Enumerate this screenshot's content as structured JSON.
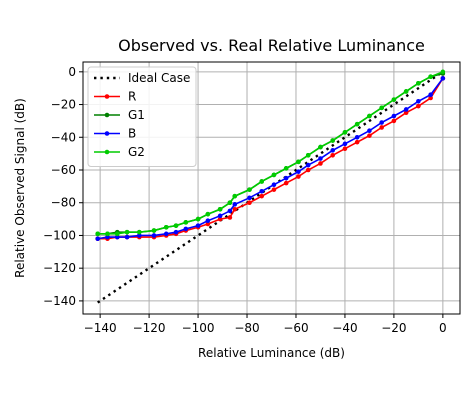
{
  "chart_data": {
    "type": "line",
    "title": "Observed vs. Real Relative Luminance",
    "xlabel": "Relative Luminance (dB)",
    "ylabel": "Relative Observed Signal (dB)",
    "xlim": [
      -147,
      7
    ],
    "ylim": [
      -148,
      6
    ],
    "xticks": [
      -140,
      -120,
      -100,
      -80,
      -60,
      -40,
      -20,
      0
    ],
    "yticks": [
      0,
      -20,
      -40,
      -60,
      -80,
      -100,
      -120,
      -140
    ],
    "grid": true,
    "legend": "top-left",
    "series": [
      {
        "name": "Ideal Case",
        "color": "#000000",
        "style": "dotted",
        "x": [
          -141,
          0
        ],
        "y": [
          -141,
          0
        ]
      },
      {
        "name": "R",
        "color": "#ff0000",
        "style": "solid-dot",
        "x": [
          -141,
          -137,
          -133,
          -129,
          -124,
          -118,
          -113,
          -109,
          -105,
          -100,
          -96,
          -91,
          -87,
          -85,
          -79,
          -74,
          -69,
          -64,
          -59,
          -55,
          -50,
          -45,
          -40,
          -35,
          -30,
          -25,
          -20,
          -15,
          -10,
          -5,
          0
        ],
        "y": [
          -102,
          -102,
          -101,
          -101,
          -101,
          -101,
          -100,
          -99,
          -97,
          -95,
          -93,
          -90,
          -89,
          -84,
          -80,
          -76,
          -72,
          -68,
          -64,
          -60,
          -56,
          -51,
          -47,
          -43,
          -39,
          -34,
          -30,
          -25,
          -21,
          -16,
          -4
        ]
      },
      {
        "name": "G1",
        "color": "#008000",
        "style": "solid-dot",
        "x": [
          -141,
          -137,
          -133,
          -129,
          -124,
          -118,
          -113,
          -109,
          -105,
          -100,
          -96,
          -91,
          -87,
          -85,
          -79,
          -74,
          -69,
          -64,
          -59,
          -55,
          -50,
          -45,
          -40,
          -35,
          -30,
          -25,
          -20,
          -15,
          -10,
          -5,
          0
        ],
        "y": [
          -99,
          -99,
          -98,
          -98,
          -98,
          -97,
          -95,
          -94,
          -92,
          -90,
          -87,
          -84,
          -80,
          -76,
          -72,
          -67,
          -63,
          -59,
          -55,
          -51,
          -46,
          -42,
          -37,
          -32,
          -27,
          -22,
          -17,
          -12,
          -7,
          -3,
          -1
        ]
      },
      {
        "name": "B",
        "color": "#0000ff",
        "style": "solid-dot",
        "x": [
          -141,
          -137,
          -133,
          -129,
          -124,
          -118,
          -113,
          -109,
          -105,
          -100,
          -96,
          -91,
          -87,
          -85,
          -79,
          -74,
          -69,
          -64,
          -59,
          -55,
          -50,
          -45,
          -40,
          -35,
          -30,
          -25,
          -20,
          -15,
          -10,
          -5,
          0
        ],
        "y": [
          -102,
          -101,
          -101,
          -101,
          -100,
          -100,
          -99,
          -98,
          -96,
          -94,
          -91,
          -88,
          -85,
          -81,
          -77,
          -73,
          -69,
          -65,
          -61,
          -57,
          -53,
          -48,
          -44,
          -40,
          -36,
          -31,
          -27,
          -23,
          -18,
          -14,
          -4
        ]
      },
      {
        "name": "G2",
        "color": "#00cc00",
        "style": "solid-dot",
        "x": [
          -141,
          -137,
          -133,
          -129,
          -124,
          -118,
          -113,
          -109,
          -105,
          -100,
          -96,
          -91,
          -87,
          -85,
          -79,
          -74,
          -69,
          -64,
          -59,
          -55,
          -50,
          -45,
          -40,
          -35,
          -30,
          -25,
          -20,
          -15,
          -10,
          -5,
          0
        ],
        "y": [
          -99,
          -99,
          -99,
          -98,
          -98,
          -97,
          -95,
          -94,
          -92,
          -90,
          -87,
          -84,
          -80,
          -76,
          -72,
          -67,
          -63,
          -59,
          -55,
          -51,
          -46,
          -42,
          -37,
          -32,
          -27,
          -22,
          -17,
          -12,
          -7,
          -3,
          0
        ]
      }
    ]
  }
}
